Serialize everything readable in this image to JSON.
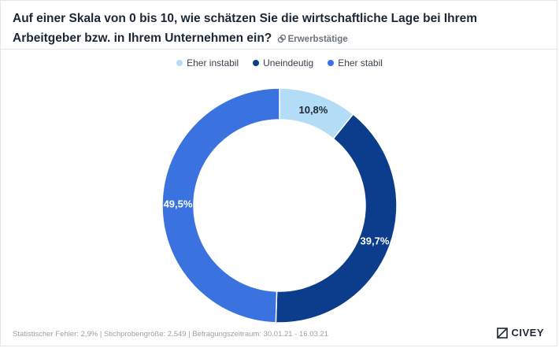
{
  "header": {
    "title": "Auf einer Skala von 0 bis 10, wie schätzen Sie die wirtschaftliche Lage bei Ihrem Arbeitgeber bzw. in Ihrem Unternehmen ein?",
    "target_group": "Erwerbstätige",
    "target_icon": "link-icon"
  },
  "footer": {
    "text": "Statistischer Fehler: 2,9% | Stichprobengröße: 2.549 | Befragungszeitraum: 30.01.21 - 16.03.21"
  },
  "brand": {
    "name": "CIVEY",
    "icon": "civey-logo-icon"
  },
  "chart_data": {
    "type": "pie",
    "donut": true,
    "legend_position": "top-center",
    "categories": [
      "Eher instabil",
      "Uneindeutig",
      "Eher stabil"
    ],
    "values": [
      10.8,
      39.7,
      49.5
    ],
    "labels": [
      "10,8%",
      "39,7%",
      "49,5%"
    ],
    "colors": [
      "#b3ddf7",
      "#0b3d8c",
      "#3a73e0"
    ],
    "label_colors": [
      "#1d2733",
      "#ffffff",
      "#ffffff"
    ]
  }
}
